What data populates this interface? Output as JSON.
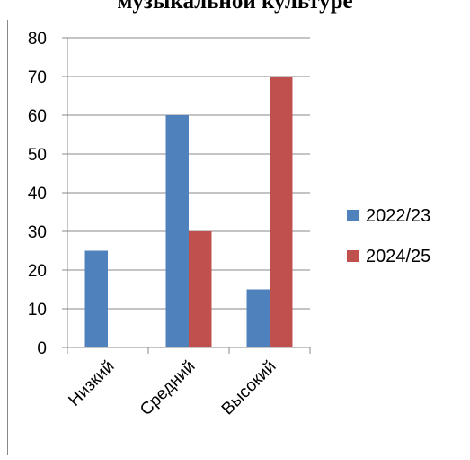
{
  "chart_data": {
    "type": "bar",
    "title": "музыкальной культуре",
    "categories": [
      "Низкий",
      "Средний",
      "Высокий"
    ],
    "series": [
      {
        "name": "2022/23",
        "values": [
          25,
          60,
          15
        ]
      },
      {
        "name": "2024/25",
        "values": [
          0,
          30,
          70
        ]
      }
    ],
    "ylim": [
      0,
      80
    ],
    "yticks": [
      0,
      10,
      20,
      30,
      40,
      50,
      60,
      70,
      80
    ],
    "grid": true,
    "legend": "right",
    "colors": [
      "#4f81bd",
      "#c0504d"
    ]
  }
}
